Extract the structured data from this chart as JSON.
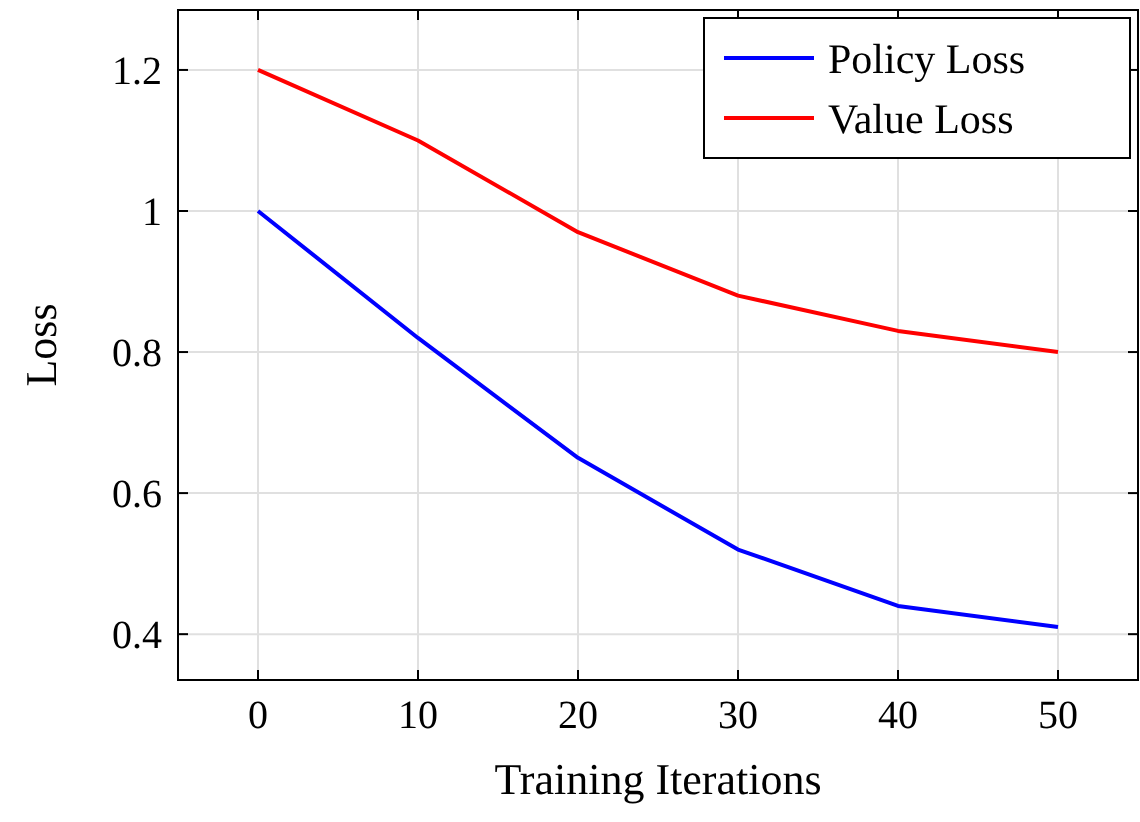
{
  "chart_data": {
    "type": "line",
    "xlabel": "Training Iterations",
    "ylabel": "Loss",
    "x": [
      0,
      10,
      20,
      30,
      40,
      50
    ],
    "series": [
      {
        "name": "Policy Loss",
        "color": "#0000ff",
        "values": [
          1.0,
          0.82,
          0.65,
          0.52,
          0.44,
          0.41
        ]
      },
      {
        "name": "Value Loss",
        "color": "#ff0000",
        "values": [
          1.2,
          1.1,
          0.97,
          0.88,
          0.83,
          0.8
        ]
      }
    ],
    "xlim": [
      -5,
      55
    ],
    "ylim": [
      0.335,
      1.285
    ],
    "xticks": [
      0,
      10,
      20,
      30,
      40,
      50
    ],
    "yticks": [
      0.4,
      0.6,
      0.8,
      1,
      1.2
    ],
    "grid": true,
    "legend": "top right",
    "marker": "none",
    "line_style": "solid"
  }
}
